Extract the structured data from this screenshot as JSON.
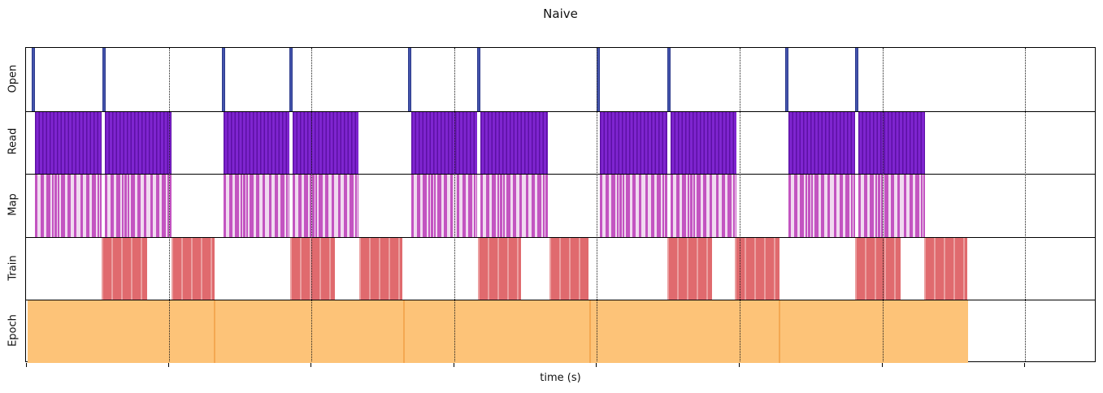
{
  "title": "Naive",
  "xlabel": "time (s)",
  "colors": {
    "open-fill": "#4353ac",
    "open-edge": "#2e3b8c",
    "read-base": "#7f25d0",
    "read-stripe": "#5c10a4",
    "map-dark": "#c354c1",
    "map-light": "#f0daf0",
    "train-base": "#e06a6e",
    "train-stripe": "#eb9fa0",
    "epoch-fill": "#fdc378",
    "epoch-divider": "#f4a851",
    "grid": "#1a1a1a",
    "spine": "#000000"
  },
  "chart_data": {
    "type": "timeline",
    "title": "Naive",
    "xlabel": "time (s)",
    "x_axis": {
      "min": 0,
      "max": 7.5,
      "tick_positions": [
        0,
        1,
        2,
        3,
        4,
        5,
        6,
        7
      ],
      "gridlines": [
        1,
        2,
        3,
        4,
        5,
        6,
        7
      ],
      "tick_labels_visible": false,
      "grid_style": "dotted"
    },
    "tracks": [
      {
        "label": "Open",
        "style": "event",
        "event_width": 0.024,
        "events": [
          0.051,
          0.547,
          1.384,
          1.856,
          2.688,
          3.172,
          4.009,
          4.505,
          5.33,
          5.82
        ]
      },
      {
        "label": "Read",
        "style": "striped-dense",
        "intervals": [
          [
            0.063,
            0.532
          ],
          [
            0.555,
            1.019
          ],
          [
            1.384,
            1.845
          ],
          [
            1.868,
            2.329
          ],
          [
            2.699,
            3.161
          ],
          [
            3.183,
            3.656
          ],
          [
            4.02,
            4.493
          ],
          [
            4.516,
            4.977
          ],
          [
            5.342,
            5.809
          ],
          [
            5.832,
            6.298
          ]
        ]
      },
      {
        "label": "Map",
        "style": "striped-sparse",
        "intervals": [
          [
            0.063,
            0.532
          ],
          [
            0.555,
            1.019
          ],
          [
            1.384,
            1.845
          ],
          [
            1.868,
            2.329
          ],
          [
            2.699,
            3.161
          ],
          [
            3.183,
            3.656
          ],
          [
            4.02,
            4.493
          ],
          [
            4.516,
            4.977
          ],
          [
            5.342,
            5.809
          ],
          [
            5.832,
            6.298
          ]
        ]
      },
      {
        "label": "Train",
        "style": "striped-wide",
        "intervals": [
          [
            0.53,
            0.848
          ],
          [
            1.019,
            1.321
          ],
          [
            1.851,
            2.164
          ],
          [
            2.335,
            2.637
          ],
          [
            3.166,
            3.468
          ],
          [
            3.667,
            3.94
          ],
          [
            4.493,
            4.806
          ],
          [
            4.966,
            5.279
          ],
          [
            5.809,
            6.128
          ],
          [
            6.293,
            6.595
          ]
        ]
      },
      {
        "label": "Epoch",
        "style": "solid",
        "intervals": [
          [
            0.01,
            1.324
          ],
          [
            1.324,
            2.648
          ],
          [
            2.648,
            3.955
          ],
          [
            3.955,
            5.279
          ],
          [
            5.279,
            6.601
          ]
        ]
      }
    ]
  }
}
